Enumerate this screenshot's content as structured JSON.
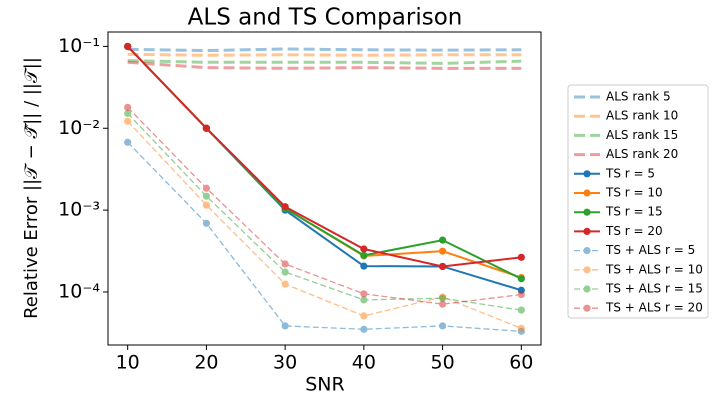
{
  "chart_data": {
    "type": "line",
    "title": "ALS and TS Comparison",
    "xlabel": "SNR",
    "ylabel": "Relative Error ||𝒯 − 𝒯̂|| / ||𝒯||",
    "x": [
      10,
      20,
      30,
      40,
      50,
      60
    ],
    "xlim": [
      7.5,
      62.5
    ],
    "xticks": [
      10,
      20,
      30,
      40,
      50,
      60
    ],
    "ylim": [
      2.25e-05,
      0.15
    ],
    "yscale": "log",
    "yticks": [
      {
        "value": 0.1,
        "label": "10⁻¹"
      },
      {
        "value": 0.01,
        "label": "10⁻²"
      },
      {
        "value": 0.001,
        "label": "10⁻³"
      },
      {
        "value": 0.0001,
        "label": "10⁻⁴"
      }
    ],
    "legend": "outside right",
    "series": [
      {
        "name": "ALS rank 5",
        "color": "#1f77b4",
        "linestyle": "--",
        "linewidth": 3,
        "alpha": 0.45,
        "marker": "none",
        "values": [
          0.092,
          0.089,
          0.093,
          0.091,
          0.09,
          0.091
        ]
      },
      {
        "name": "ALS rank 10",
        "color": "#ff7f0e",
        "linestyle": "--",
        "linewidth": 3,
        "alpha": 0.45,
        "marker": "none",
        "values": [
          0.08,
          0.078,
          0.079,
          0.078,
          0.079,
          0.079
        ]
      },
      {
        "name": "ALS rank 15",
        "color": "#2ca02c",
        "linestyle": "--",
        "linewidth": 3,
        "alpha": 0.45,
        "marker": "none",
        "values": [
          0.067,
          0.064,
          0.064,
          0.064,
          0.062,
          0.066
        ]
      },
      {
        "name": "ALS rank 20",
        "color": "#d62728",
        "linestyle": "--",
        "linewidth": 3,
        "alpha": 0.45,
        "marker": "none",
        "values": [
          0.064,
          0.055,
          0.054,
          0.055,
          0.054,
          0.054
        ]
      },
      {
        "name": "TS r = 5",
        "color": "#1f77b4",
        "linestyle": "-",
        "linewidth": 2,
        "alpha": 1,
        "marker": "o",
        "values": [
          0.1,
          0.01,
          0.001,
          0.000207,
          0.000205,
          0.000105
        ]
      },
      {
        "name": "TS r = 10",
        "color": "#ff7f0e",
        "linestyle": "-",
        "linewidth": 2,
        "alpha": 1,
        "marker": "o",
        "values": [
          0.1,
          0.01,
          0.00105,
          0.000275,
          0.000315,
          0.00015
        ]
      },
      {
        "name": "TS r = 15",
        "color": "#2ca02c",
        "linestyle": "-",
        "linewidth": 2,
        "alpha": 1,
        "marker": "o",
        "values": [
          0.1,
          0.01,
          0.00105,
          0.00028,
          0.00043,
          0.000145
        ]
      },
      {
        "name": "TS r = 20",
        "color": "#d62728",
        "linestyle": "-",
        "linewidth": 2,
        "alpha": 1,
        "marker": "o",
        "values": [
          0.1,
          0.01,
          0.0011,
          0.000335,
          0.000205,
          0.000265
        ]
      },
      {
        "name": "TS + ALS r = 5",
        "color": "#1f77b4",
        "linestyle": "--",
        "linewidth": 1.3,
        "alpha": 0.5,
        "marker": "o",
        "values": [
          0.00675,
          0.00069,
          3.85e-05,
          3.5e-05,
          3.85e-05,
          3.3e-05
        ]
      },
      {
        "name": "TS + ALS r = 10",
        "color": "#ff7f0e",
        "linestyle": "--",
        "linewidth": 1.3,
        "alpha": 0.5,
        "marker": "o",
        "values": [
          0.0122,
          0.00115,
          0.000125,
          5.1e-05,
          8.7e-05,
          3.6e-05
        ]
      },
      {
        "name": "TS + ALS r = 15",
        "color": "#2ca02c",
        "linestyle": "--",
        "linewidth": 1.3,
        "alpha": 0.5,
        "marker": "o",
        "values": [
          0.0152,
          0.00148,
          0.000175,
          8e-05,
          8.4e-05,
          6e-05
        ]
      },
      {
        "name": "TS + ALS r = 20",
        "color": "#d62728",
        "linestyle": "--",
        "linewidth": 1.3,
        "alpha": 0.5,
        "marker": "o",
        "values": [
          0.018,
          0.00185,
          0.00022,
          9.5e-05,
          7.1e-05,
          9.3e-05
        ]
      }
    ]
  }
}
